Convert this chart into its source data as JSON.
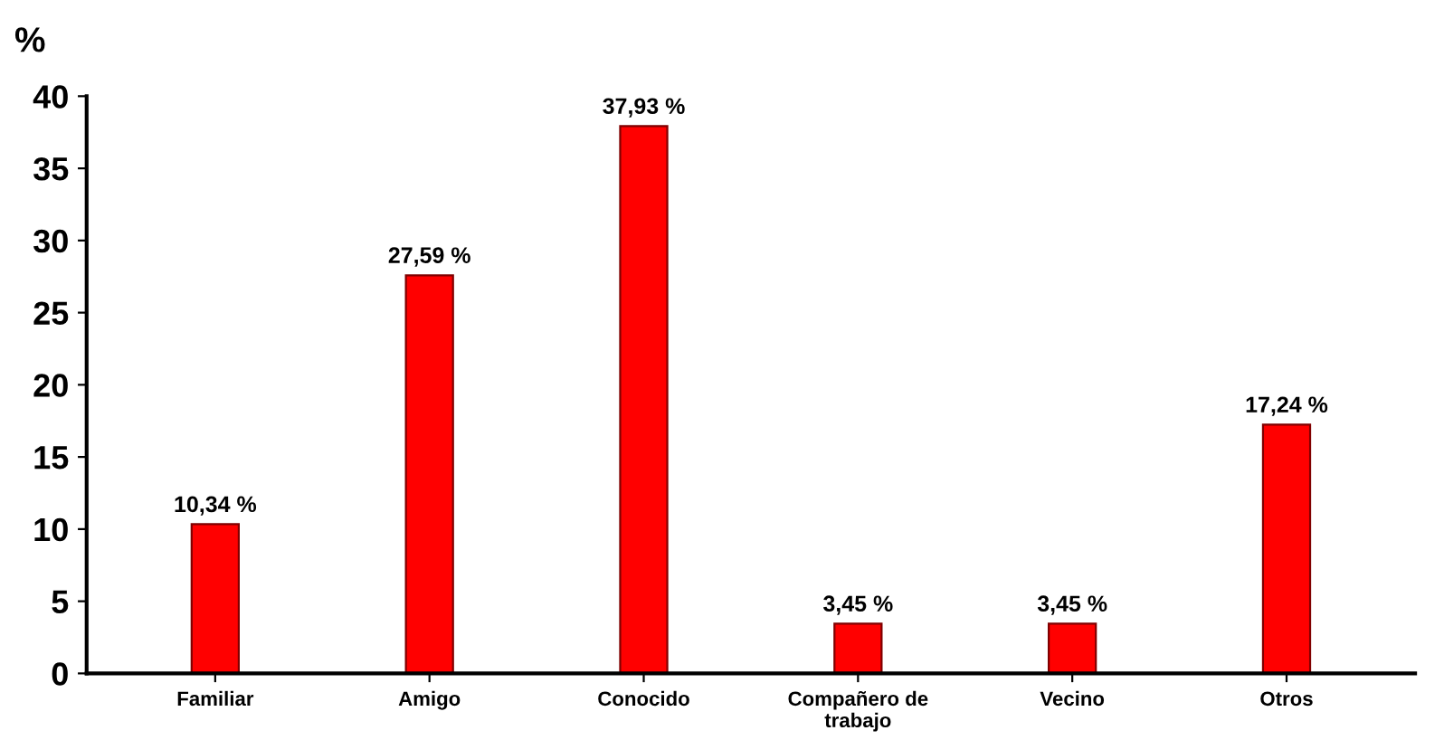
{
  "chart_data": {
    "type": "bar",
    "ylabel": "%",
    "categories": [
      "Familiar",
      "Amigo",
      "Conocido",
      "Compañero de\ntrabajo",
      "Vecino",
      "Otros"
    ],
    "values": [
      10.34,
      27.59,
      37.93,
      3.45,
      3.45,
      17.24
    ],
    "value_labels": [
      "10,34 %",
      "27,59 %",
      "37,93 %",
      "3,45 %",
      "3,45 %",
      "17,24 %"
    ],
    "color": "#ff0000",
    "ylim": [
      0,
      40
    ],
    "yticks": [
      0,
      5,
      10,
      15,
      20,
      25,
      30,
      35,
      40
    ],
    "grid": false,
    "legend": false
  }
}
